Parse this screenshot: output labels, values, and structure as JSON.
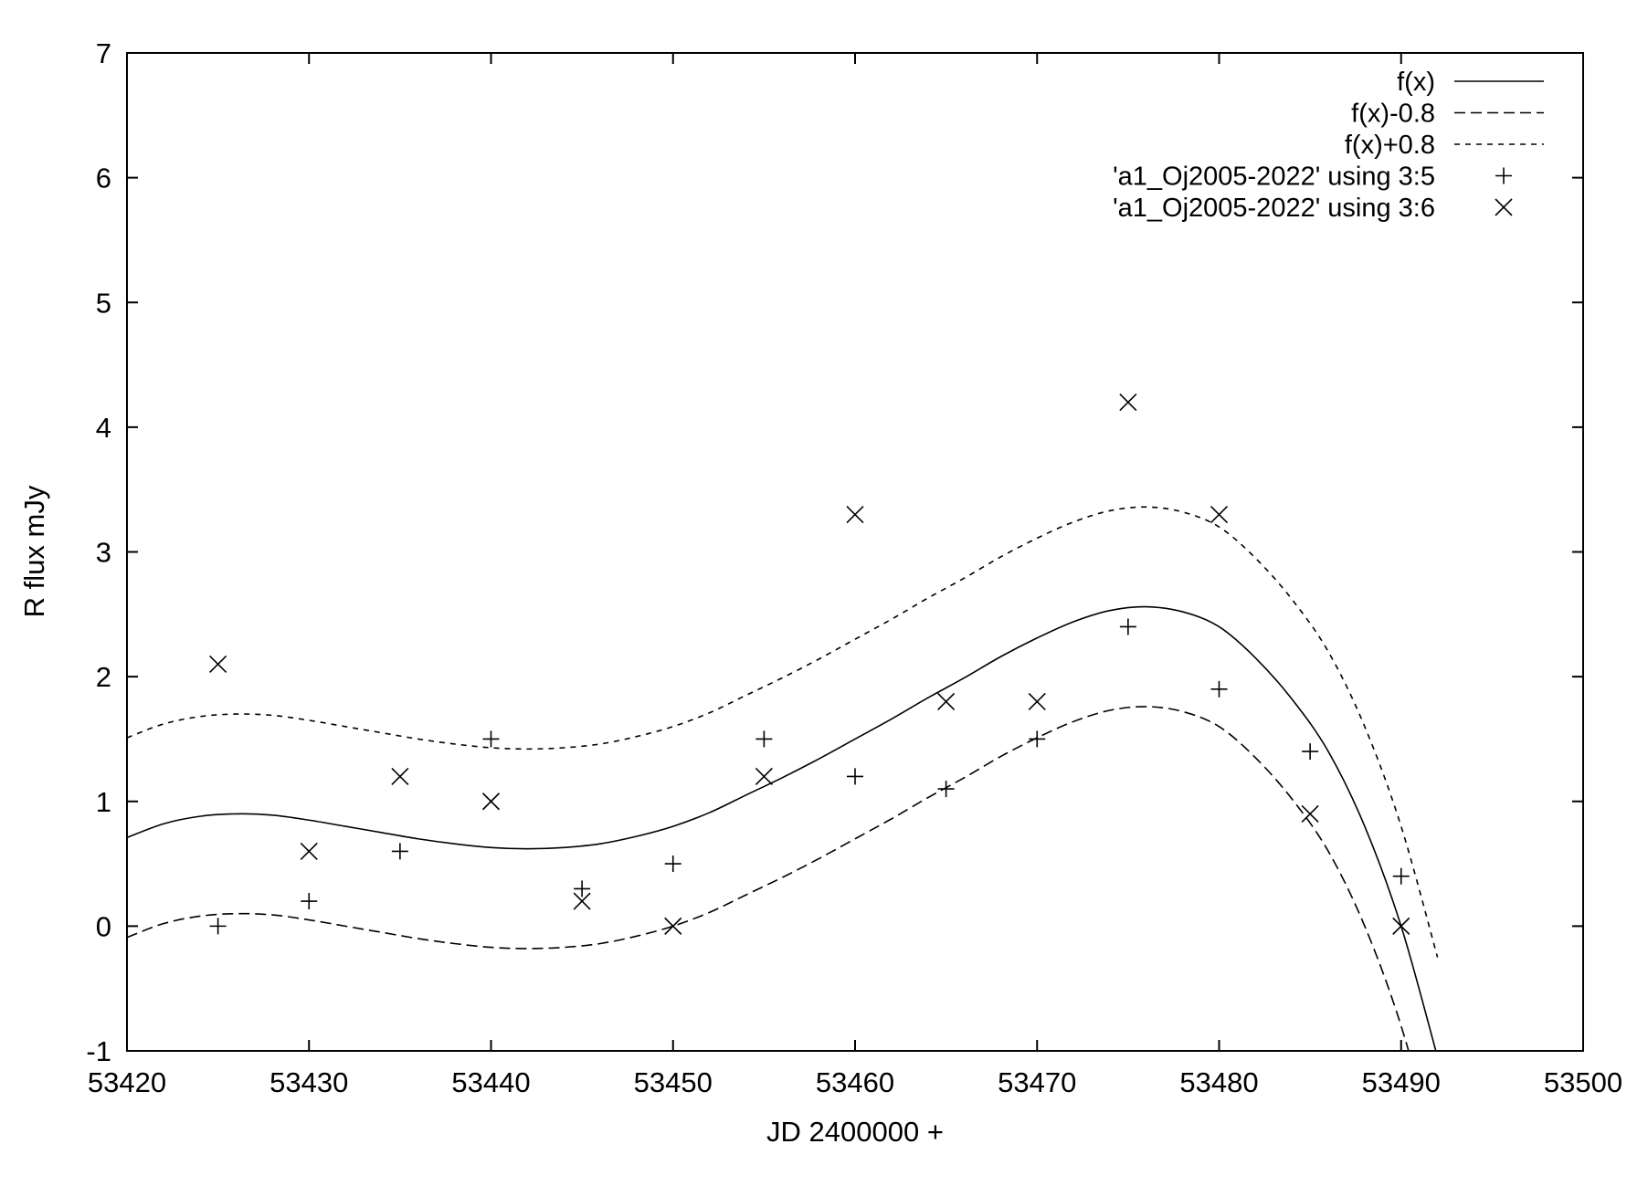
{
  "chart_data": {
    "type": "scatter",
    "xlabel": "JD 2400000 +",
    "ylabel": "R flux mJy",
    "xlim": [
      53420,
      53500
    ],
    "ylim": [
      -1,
      7
    ],
    "xticks": [
      53420,
      53430,
      53440,
      53450,
      53460,
      53470,
      53480,
      53490,
      53500
    ],
    "yticks": [
      -1,
      0,
      1,
      2,
      3,
      4,
      5,
      6,
      7
    ],
    "grid": false,
    "legend_position": "top-right",
    "curves": [
      {
        "name": "f(x)",
        "style": "solid",
        "x": [
          53420,
          53422,
          53424,
          53426,
          53428,
          53430,
          53432,
          53434,
          53436,
          53438,
          53440,
          53442,
          53444,
          53446,
          53448,
          53450,
          53452,
          53454,
          53456,
          53458,
          53460,
          53462,
          53464,
          53466,
          53468,
          53470,
          53472,
          53474,
          53476,
          53478,
          53480,
          53482,
          53484,
          53486,
          53488,
          53490,
          53492
        ],
        "y": [
          0.71,
          0.82,
          0.88,
          0.9,
          0.89,
          0.85,
          0.8,
          0.75,
          0.7,
          0.66,
          0.63,
          0.62,
          0.63,
          0.66,
          0.72,
          0.8,
          0.91,
          1.05,
          1.19,
          1.34,
          1.5,
          1.66,
          1.83,
          1.99,
          2.16,
          2.31,
          2.44,
          2.53,
          2.56,
          2.52,
          2.4,
          2.15,
          1.82,
          1.4,
          0.8,
          0.0,
          -1.05
        ]
      },
      {
        "name": "f(x)-0.8",
        "style": "long-dash",
        "offset": -0.8
      },
      {
        "name": "f(x)+0.8",
        "style": "short-dash",
        "offset": 0.8
      }
    ],
    "series": [
      {
        "name": "'a1_Oj2005-2022' using 3:5",
        "marker": "plus",
        "x": [
          53425,
          53430,
          53435,
          53440,
          53445,
          53450,
          53455,
          53460,
          53465,
          53470,
          53475,
          53480,
          53485,
          53490
        ],
        "y": [
          0.0,
          0.2,
          0.6,
          1.5,
          0.3,
          0.5,
          1.5,
          1.2,
          1.1,
          1.5,
          2.4,
          1.9,
          1.4,
          0.4
        ]
      },
      {
        "name": "'a1_Oj2005-2022' using 3:6",
        "marker": "cross",
        "x": [
          53425,
          53430,
          53435,
          53440,
          53445,
          53450,
          53455,
          53460,
          53465,
          53470,
          53475,
          53480,
          53485,
          53490
        ],
        "y": [
          2.1,
          0.6,
          1.2,
          1.0,
          0.2,
          0.0,
          1.2,
          3.3,
          1.8,
          1.8,
          4.2,
          3.3,
          0.9,
          0.0
        ]
      }
    ]
  }
}
